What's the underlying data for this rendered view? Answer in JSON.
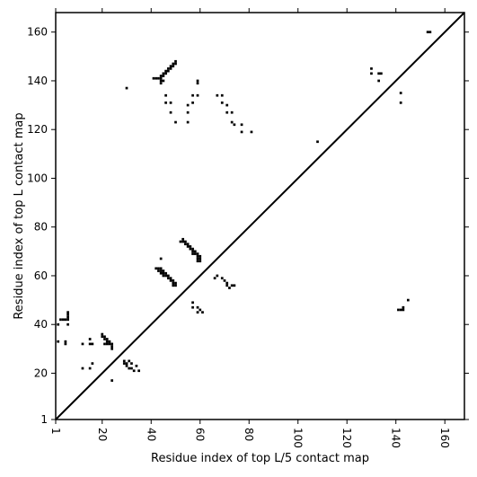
{
  "chart_data": {
    "type": "heatmap",
    "title": "",
    "xlabel": "Residue index of top L/5 contact map",
    "ylabel": "Residue index of top L contact map",
    "xlim": [
      1,
      168
    ],
    "ylim": [
      1,
      168
    ],
    "xticks": [
      "1",
      "20",
      "40",
      "60",
      "80",
      "100",
      "120",
      "140",
      "160"
    ],
    "yticks": [
      "1",
      "20",
      "40",
      "60",
      "80",
      "100",
      "120",
      "140",
      "160"
    ],
    "xtick_rotation": -90,
    "diagonal": true,
    "contacts_upper": [
      [
        41,
        141
      ],
      [
        42,
        141
      ],
      [
        43,
        141
      ],
      [
        44,
        141
      ],
      [
        44,
        142
      ],
      [
        45,
        142
      ],
      [
        45,
        143
      ],
      [
        46,
        143
      ],
      [
        46,
        144
      ],
      [
        47,
        144
      ],
      [
        47,
        145
      ],
      [
        48,
        145
      ],
      [
        48,
        146
      ],
      [
        49,
        146
      ],
      [
        49,
        147
      ],
      [
        50,
        147
      ],
      [
        50,
        148
      ],
      [
        44,
        139
      ],
      [
        44,
        140
      ],
      [
        45,
        140
      ],
      [
        30,
        137
      ],
      [
        59,
        140
      ],
      [
        59,
        139
      ],
      [
        59,
        134
      ],
      [
        57,
        134
      ],
      [
        57,
        131
      ],
      [
        55,
        130
      ],
      [
        55,
        127
      ],
      [
        55,
        123
      ],
      [
        50,
        123
      ],
      [
        48,
        127
      ],
      [
        46,
        131
      ],
      [
        48,
        131
      ],
      [
        46,
        134
      ],
      [
        67,
        134
      ],
      [
        69,
        134
      ],
      [
        69,
        131
      ],
      [
        71,
        130
      ],
      [
        71,
        127
      ],
      [
        73,
        127
      ],
      [
        73,
        123
      ],
      [
        74,
        122
      ],
      [
        77,
        122
      ],
      [
        77,
        119
      ],
      [
        81,
        119
      ],
      [
        108,
        115
      ],
      [
        130,
        145
      ],
      [
        130,
        143
      ],
      [
        133,
        143
      ],
      [
        134,
        143
      ],
      [
        133,
        140
      ],
      [
        142,
        135
      ],
      [
        142,
        131
      ],
      [
        153,
        160
      ],
      [
        154,
        160
      ]
    ],
    "contacts_lower": [
      [
        3,
        42
      ],
      [
        4,
        42
      ],
      [
        5,
        42
      ],
      [
        6,
        42
      ],
      [
        6,
        43
      ],
      [
        6,
        44
      ],
      [
        6,
        45
      ],
      [
        6,
        40
      ],
      [
        5,
        33
      ],
      [
        5,
        32
      ],
      [
        2,
        40
      ],
      [
        2,
        33
      ],
      [
        12,
        32
      ],
      [
        12,
        22
      ],
      [
        15,
        34
      ],
      [
        15,
        32
      ],
      [
        16,
        32
      ],
      [
        15,
        22
      ],
      [
        16,
        24
      ],
      [
        20,
        35
      ],
      [
        20,
        36
      ],
      [
        21,
        35
      ],
      [
        21,
        34
      ],
      [
        22,
        34
      ],
      [
        22,
        33
      ],
      [
        23,
        33
      ],
      [
        23,
        32
      ],
      [
        24,
        32
      ],
      [
        24,
        31
      ],
      [
        24,
        30
      ],
      [
        21,
        32
      ],
      [
        22,
        32
      ],
      [
        24,
        17
      ],
      [
        29,
        24
      ],
      [
        29,
        25
      ],
      [
        30,
        23
      ],
      [
        30,
        24
      ],
      [
        31,
        22
      ],
      [
        31,
        25
      ],
      [
        32,
        22
      ],
      [
        32,
        24
      ],
      [
        33,
        21
      ],
      [
        34,
        23
      ],
      [
        35,
        21
      ],
      [
        42,
        63
      ],
      [
        43,
        63
      ],
      [
        43,
        62
      ],
      [
        44,
        62
      ],
      [
        44,
        61
      ],
      [
        44,
        63
      ],
      [
        45,
        62
      ],
      [
        45,
        61
      ],
      [
        45,
        60
      ],
      [
        46,
        61
      ],
      [
        46,
        60
      ],
      [
        47,
        60
      ],
      [
        47,
        59
      ],
      [
        48,
        59
      ],
      [
        48,
        58
      ],
      [
        49,
        58
      ],
      [
        49,
        57
      ],
      [
        50,
        57
      ],
      [
        50,
        56
      ],
      [
        49,
        56
      ],
      [
        44,
        67
      ],
      [
        52,
        74
      ],
      [
        53,
        74
      ],
      [
        53,
        75
      ],
      [
        54,
        74
      ],
      [
        54,
        73
      ],
      [
        55,
        73
      ],
      [
        55,
        72
      ],
      [
        56,
        72
      ],
      [
        56,
        71
      ],
      [
        57,
        71
      ],
      [
        57,
        70
      ],
      [
        57,
        69
      ],
      [
        58,
        70
      ],
      [
        58,
        69
      ],
      [
        59,
        69
      ],
      [
        59,
        68
      ],
      [
        60,
        68
      ],
      [
        60,
        67
      ],
      [
        59,
        67
      ],
      [
        59,
        66
      ],
      [
        60,
        66
      ],
      [
        57,
        49
      ],
      [
        57,
        47
      ],
      [
        59,
        47
      ],
      [
        59,
        45
      ],
      [
        60,
        46
      ],
      [
        61,
        45
      ],
      [
        66,
        59
      ],
      [
        67,
        60
      ],
      [
        69,
        59
      ],
      [
        70,
        58
      ],
      [
        71,
        57
      ],
      [
        71,
        56
      ],
      [
        72,
        55
      ],
      [
        73,
        56
      ],
      [
        74,
        56
      ],
      [
        141,
        46
      ],
      [
        142,
        46
      ],
      [
        143,
        46
      ],
      [
        143,
        47
      ],
      [
        145,
        50
      ]
    ]
  }
}
